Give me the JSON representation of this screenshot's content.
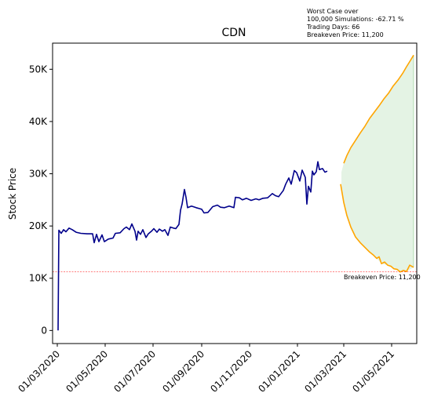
{
  "chart_data": {
    "type": "line",
    "title": "CDN",
    "ylabel": "Stock Price",
    "xlabel": "",
    "ylim": [
      -2500,
      55000
    ],
    "xlim": [
      "2020-02-24",
      "2021-06-02"
    ],
    "grid": false,
    "y_ticks": [
      {
        "value": 0,
        "label": "0"
      },
      {
        "value": 10000,
        "label": "10K"
      },
      {
        "value": 20000,
        "label": "20K"
      },
      {
        "value": 30000,
        "label": "30K"
      },
      {
        "value": 40000,
        "label": "40K"
      },
      {
        "value": 50000,
        "label": "50K"
      }
    ],
    "x_ticks": [
      {
        "date": "2020-03-01",
        "label": "01/03/2020"
      },
      {
        "date": "2020-05-01",
        "label": "01/05/2020"
      },
      {
        "date": "2020-07-01",
        "label": "01/07/2020"
      },
      {
        "date": "2020-09-01",
        "label": "01/09/2020"
      },
      {
        "date": "2020-11-01",
        "label": "01/11/2020"
      },
      {
        "date": "2021-01-01",
        "label": "01/01/2021"
      },
      {
        "date": "2021-03-01",
        "label": "01/03/2021"
      },
      {
        "date": "2021-05-01",
        "label": "01/05/2021"
      }
    ],
    "series": [
      {
        "color": "#00008b",
        "points": [
          [
            "2020-03-02",
            0
          ],
          [
            "2020-03-03",
            19200
          ],
          [
            "2020-03-06",
            18600
          ],
          [
            "2020-03-09",
            19300
          ],
          [
            "2020-03-12",
            18900
          ],
          [
            "2020-03-16",
            19600
          ],
          [
            "2020-03-20",
            19300
          ],
          [
            "2020-03-25",
            18800
          ],
          [
            "2020-03-31",
            18600
          ],
          [
            "2020-04-08",
            18500
          ],
          [
            "2020-04-15",
            18500
          ],
          [
            "2020-04-17",
            16800
          ],
          [
            "2020-04-20",
            18400
          ],
          [
            "2020-04-23",
            17000
          ],
          [
            "2020-04-27",
            18300
          ],
          [
            "2020-04-30",
            17000
          ],
          [
            "2020-05-05",
            17500
          ],
          [
            "2020-05-11",
            17700
          ],
          [
            "2020-05-14",
            18600
          ],
          [
            "2020-05-20",
            18700
          ],
          [
            "2020-05-25",
            19500
          ],
          [
            "2020-05-28",
            19800
          ],
          [
            "2020-06-01",
            19300
          ],
          [
            "2020-06-04",
            20400
          ],
          [
            "2020-06-08",
            19000
          ],
          [
            "2020-06-10",
            17300
          ],
          [
            "2020-06-12",
            19000
          ],
          [
            "2020-06-15",
            18400
          ],
          [
            "2020-06-18",
            19300
          ],
          [
            "2020-06-22",
            17800
          ],
          [
            "2020-06-25",
            18500
          ],
          [
            "2020-06-29",
            19000
          ],
          [
            "2020-07-02",
            19500
          ],
          [
            "2020-07-06",
            18800
          ],
          [
            "2020-07-09",
            19400
          ],
          [
            "2020-07-13",
            19000
          ],
          [
            "2020-07-16",
            19300
          ],
          [
            "2020-07-20",
            18200
          ],
          [
            "2020-07-23",
            19800
          ],
          [
            "2020-07-27",
            19600
          ],
          [
            "2020-07-30",
            19500
          ],
          [
            "2020-08-03",
            20300
          ],
          [
            "2020-08-05",
            23000
          ],
          [
            "2020-08-07",
            24200
          ],
          [
            "2020-08-10",
            27000
          ],
          [
            "2020-08-12",
            25500
          ],
          [
            "2020-08-14",
            23500
          ],
          [
            "2020-08-19",
            23800
          ],
          [
            "2020-08-25",
            23500
          ],
          [
            "2020-09-01",
            23200
          ],
          [
            "2020-09-04",
            22500
          ],
          [
            "2020-09-09",
            22600
          ],
          [
            "2020-09-15",
            23700
          ],
          [
            "2020-09-21",
            24000
          ],
          [
            "2020-09-25",
            23600
          ],
          [
            "2020-09-30",
            23500
          ],
          [
            "2020-10-06",
            23800
          ],
          [
            "2020-10-12",
            23500
          ],
          [
            "2020-10-14",
            25500
          ],
          [
            "2020-10-19",
            25400
          ],
          [
            "2020-10-23",
            25000
          ],
          [
            "2020-10-28",
            25300
          ],
          [
            "2020-11-03",
            24900
          ],
          [
            "2020-11-09",
            25200
          ],
          [
            "2020-11-13",
            25000
          ],
          [
            "2020-11-18",
            25300
          ],
          [
            "2020-11-24",
            25400
          ],
          [
            "2020-11-30",
            26200
          ],
          [
            "2020-12-04",
            25800
          ],
          [
            "2020-12-08",
            25600
          ],
          [
            "2020-12-14",
            26800
          ],
          [
            "2020-12-17",
            28000
          ],
          [
            "2020-12-21",
            29200
          ],
          [
            "2020-12-24",
            28000
          ],
          [
            "2020-12-28",
            30600
          ],
          [
            "2020-12-31",
            30200
          ],
          [
            "2021-01-04",
            28600
          ],
          [
            "2021-01-07",
            30700
          ],
          [
            "2021-01-11",
            29300
          ],
          [
            "2021-01-13",
            24200
          ],
          [
            "2021-01-15",
            27600
          ],
          [
            "2021-01-18",
            26500
          ],
          [
            "2021-01-20",
            30500
          ],
          [
            "2021-01-22",
            29800
          ],
          [
            "2021-01-25",
            30400
          ],
          [
            "2021-01-27",
            32300
          ],
          [
            "2021-01-29",
            30800
          ],
          [
            "2021-02-02",
            31000
          ],
          [
            "2021-02-05",
            30300
          ],
          [
            "2021-02-08",
            30500
          ]
        ]
      },
      {
        "color": "#ffa500",
        "points": [
          [
            "2021-03-01",
            32000
          ],
          [
            "2021-03-05",
            33500
          ],
          [
            "2021-03-10",
            35000
          ],
          [
            "2021-03-16",
            36400
          ],
          [
            "2021-03-22",
            37800
          ],
          [
            "2021-03-28",
            39100
          ],
          [
            "2021-04-03",
            40600
          ],
          [
            "2021-04-09",
            41800
          ],
          [
            "2021-04-15",
            43000
          ],
          [
            "2021-04-21",
            44300
          ],
          [
            "2021-04-27",
            45400
          ],
          [
            "2021-05-03",
            46800
          ],
          [
            "2021-05-09",
            47900
          ],
          [
            "2021-05-15",
            49200
          ],
          [
            "2021-05-20",
            50500
          ],
          [
            "2021-05-25",
            51700
          ],
          [
            "2021-05-29",
            52700
          ]
        ]
      },
      {
        "color": "#ffa500",
        "points": [
          [
            "2021-02-25",
            28000
          ],
          [
            "2021-03-01",
            24500
          ],
          [
            "2021-03-05",
            22000
          ],
          [
            "2021-03-10",
            19800
          ],
          [
            "2021-03-16",
            17900
          ],
          [
            "2021-03-22",
            16800
          ],
          [
            "2021-03-28",
            15900
          ],
          [
            "2021-04-03",
            15000
          ],
          [
            "2021-04-08",
            14400
          ],
          [
            "2021-04-12",
            13800
          ],
          [
            "2021-04-15",
            14100
          ],
          [
            "2021-04-18",
            12800
          ],
          [
            "2021-04-22",
            13100
          ],
          [
            "2021-04-26",
            12500
          ],
          [
            "2021-04-30",
            12300
          ],
          [
            "2021-05-04",
            11800
          ],
          [
            "2021-05-08",
            11700
          ],
          [
            "2021-05-12",
            11200
          ],
          [
            "2021-05-16",
            11500
          ],
          [
            "2021-05-20",
            11300
          ],
          [
            "2021-05-24",
            12500
          ],
          [
            "2021-05-29",
            12100
          ]
        ]
      }
    ],
    "band": {
      "color": "#2ca02c",
      "opacity": 0.13,
      "start": "2021-02-26",
      "end": "2021-05-29",
      "upper": [
        [
          "2021-02-26",
          30300
        ],
        [
          "2021-03-01",
          32000
        ],
        [
          "2021-03-05",
          33500
        ],
        [
          "2021-03-10",
          35000
        ],
        [
          "2021-03-16",
          36400
        ],
        [
          "2021-03-22",
          37800
        ],
        [
          "2021-03-28",
          39100
        ],
        [
          "2021-04-03",
          40600
        ],
        [
          "2021-04-09",
          41800
        ],
        [
          "2021-04-15",
          43000
        ],
        [
          "2021-04-21",
          44300
        ],
        [
          "2021-04-27",
          45400
        ],
        [
          "2021-05-03",
          46800
        ],
        [
          "2021-05-09",
          47900
        ],
        [
          "2021-05-15",
          49200
        ],
        [
          "2021-05-20",
          50500
        ],
        [
          "2021-05-25",
          51700
        ],
        [
          "2021-05-29",
          52700
        ]
      ],
      "lower": [
        [
          "2021-02-26",
          28000
        ],
        [
          "2021-03-01",
          24500
        ],
        [
          "2021-03-05",
          22000
        ],
        [
          "2021-03-10",
          19800
        ],
        [
          "2021-03-16",
          17900
        ],
        [
          "2021-03-22",
          16800
        ],
        [
          "2021-03-28",
          15900
        ],
        [
          "2021-04-03",
          15000
        ],
        [
          "2021-04-08",
          14400
        ],
        [
          "2021-04-12",
          13800
        ],
        [
          "2021-04-18",
          12800
        ],
        [
          "2021-04-26",
          12500
        ],
        [
          "2021-05-04",
          11800
        ],
        [
          "2021-05-12",
          11200
        ],
        [
          "2021-05-20",
          11300
        ],
        [
          "2021-05-29",
          12100
        ]
      ]
    },
    "breakeven": {
      "value": 11200,
      "color": "#ff0000",
      "label": "Breakeven Price: 11,200"
    },
    "annotation_lines": [
      "Worst Case over",
      "100,000 Simulations: -62.71 %",
      "Trading Days: 66",
      "Breakeven Price: 11,200"
    ]
  }
}
